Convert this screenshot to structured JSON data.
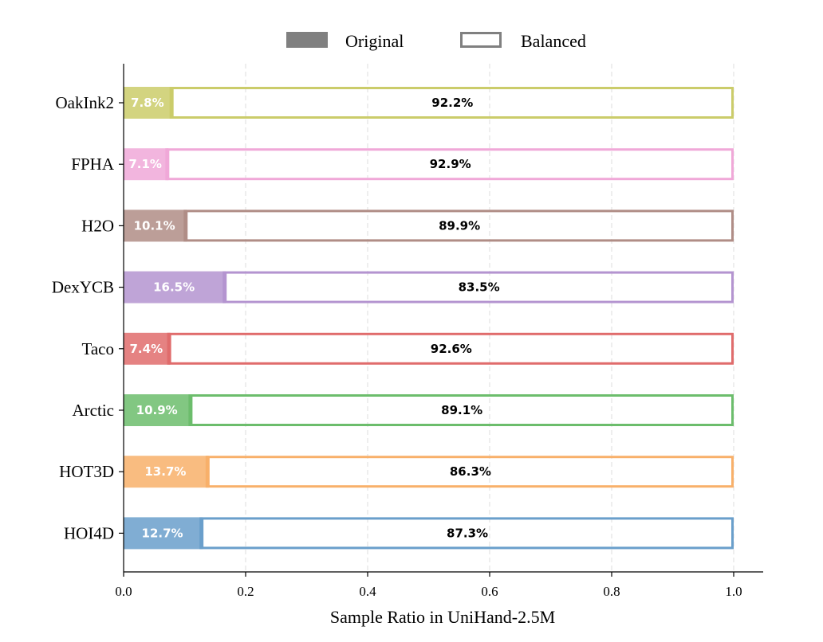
{
  "chart_data": {
    "type": "bar",
    "orientation": "horizontal",
    "stacked": true,
    "title": "",
    "xlabel": "Sample Ratio in UniHand-2.5M",
    "ylabel": "",
    "xlim": [
      0.0,
      1.0
    ],
    "xticks": [
      "0.0",
      "0.2",
      "0.4",
      "0.6",
      "0.8",
      "1.0"
    ],
    "grid": "vertical dashed",
    "legend": {
      "placement": "top-center",
      "entries": [
        {
          "label": "Original",
          "style": "filled",
          "color": "#808080"
        },
        {
          "label": "Balanced",
          "style": "outline",
          "color": "#808080"
        }
      ]
    },
    "categories": [
      "OakInk2",
      "FPHA",
      "H2O",
      "DexYCB",
      "Taco",
      "Arctic",
      "HOT3D",
      "HOI4D"
    ],
    "colors": [
      "#cbcc6a",
      "#f0a8d8",
      "#b08d86",
      "#b494d0",
      "#e06c6c",
      "#6cbd6c",
      "#f8b06a",
      "#6a9fcb"
    ],
    "series": [
      {
        "name": "Original",
        "values": [
          0.078,
          0.071,
          0.101,
          0.165,
          0.074,
          0.109,
          0.137,
          0.127
        ],
        "labels": [
          "7.8%",
          "7.1%",
          "10.1%",
          "16.5%",
          "7.4%",
          "10.9%",
          "13.7%",
          "12.7%"
        ]
      },
      {
        "name": "Balanced",
        "values": [
          0.922,
          0.929,
          0.899,
          0.835,
          0.926,
          0.891,
          0.863,
          0.873
        ],
        "labels": [
          "92.2%",
          "92.9%",
          "89.9%",
          "83.5%",
          "92.6%",
          "89.1%",
          "86.3%",
          "87.3%"
        ]
      }
    ]
  }
}
